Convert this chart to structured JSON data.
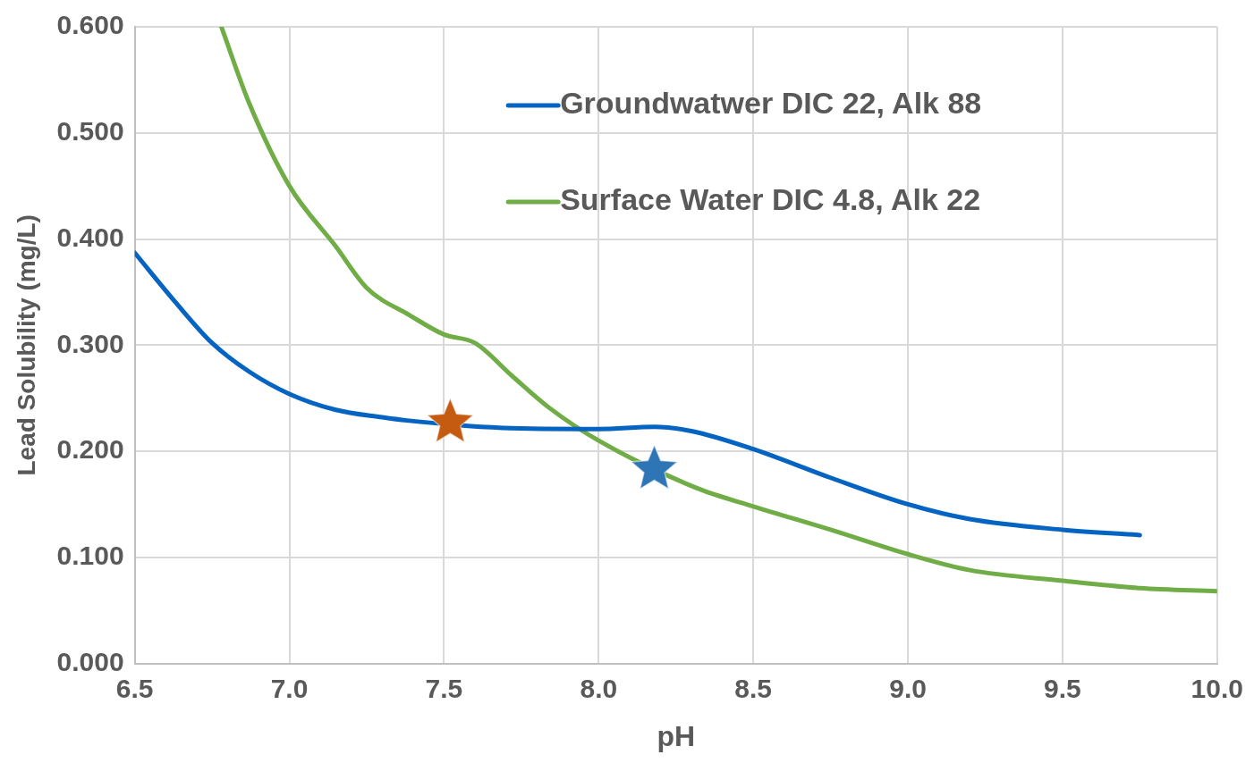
{
  "chart_data": {
    "type": "line",
    "xlabel": "pH",
    "ylabel": "Lead Solubility (mg/L)",
    "xlim": [
      6.5,
      10.0
    ],
    "xticks": [
      {
        "value": 6.5,
        "label": "6.5"
      },
      {
        "value": 7,
        "label": "7.0"
      },
      {
        "value": 7.5,
        "label": "7.5"
      },
      {
        "value": 8,
        "label": "8.0"
      },
      {
        "value": 8.5,
        "label": "8.5"
      },
      {
        "value": 9,
        "label": "9.0"
      },
      {
        "value": 9.5,
        "label": "9.5"
      },
      {
        "value": 10,
        "label": "10.0"
      }
    ],
    "ylim": [
      0,
      0.6
    ],
    "yticks": [
      {
        "value": 0,
        "label": "0.000"
      },
      {
        "value": 0.1,
        "label": "0.100"
      },
      {
        "value": 0.2,
        "label": "0.200"
      },
      {
        "value": 0.3,
        "label": "0.300"
      },
      {
        "value": 0.4,
        "label": "0.400"
      },
      {
        "value": 0.5,
        "label": "0.500"
      },
      {
        "value": 0.6,
        "label": "0.600"
      }
    ],
    "grid": true,
    "legend": "top right",
    "marker": "none",
    "line_style": "solid",
    "series": [
      {
        "name": "Groundwatwer DIC 22, Alk 88",
        "color": "#0563c1",
        "x": [
          6.5,
          6.63,
          6.75,
          6.87,
          7.0,
          7.15,
          7.3,
          7.38,
          7.69,
          8.0,
          8.18,
          8.3,
          8.5,
          8.75,
          9.0,
          9.2,
          9.5,
          9.75
        ],
        "values": [
          0.387,
          0.341,
          0.302,
          0.275,
          0.254,
          0.239,
          0.232,
          0.229,
          0.222,
          0.221,
          0.223,
          0.219,
          0.202,
          0.175,
          0.15,
          0.136,
          0.126,
          0.121
        ]
      },
      {
        "name": "Surface Water DIC 4.8, Alk 22",
        "color": "#70ad47",
        "x": [
          6.78,
          6.87,
          7.0,
          7.15,
          7.25,
          7.39,
          7.5,
          7.6,
          7.72,
          7.84,
          8.0,
          8.32,
          8.5,
          8.75,
          9.0,
          9.2,
          9.5,
          9.75,
          10.0
        ],
        "values": [
          0.6,
          0.528,
          0.45,
          0.393,
          0.354,
          0.328,
          0.31,
          0.302,
          0.271,
          0.241,
          0.21,
          0.165,
          0.148,
          0.126,
          0.103,
          0.088,
          0.078,
          0.071,
          0.068
        ]
      },
      {
        "type": "scatter",
        "marker": "star",
        "color": "#c55a11",
        "x": [
          7.52
        ],
        "values": [
          0.227
        ]
      },
      {
        "type": "scatter",
        "marker": "star",
        "color": "#2e75b6",
        "x": [
          8.18
        ],
        "values": [
          0.183
        ]
      }
    ]
  }
}
